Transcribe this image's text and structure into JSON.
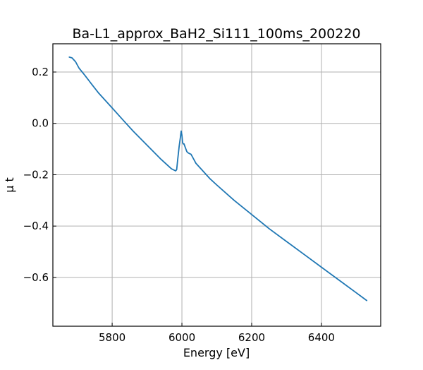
{
  "chart_data": {
    "type": "line",
    "title": "Ba-L1_approx_BaH2_Si111_100ms_200220",
    "xlabel": "Energy [eV]",
    "ylabel": "μ t",
    "xlim": [
      5630,
      6570
    ],
    "ylim": [
      -0.79,
      0.31
    ],
    "xticks": [
      5800,
      6000,
      6200,
      6400
    ],
    "xtick_labels": [
      "5800",
      "6000",
      "6200",
      "6400"
    ],
    "yticks": [
      0.2,
      0.0,
      -0.2,
      -0.4,
      -0.6
    ],
    "ytick_labels": [
      "0.2",
      "0.0",
      "−0.2",
      "−0.4",
      "−0.6"
    ],
    "grid": true,
    "line_color": "#1f77b4",
    "series": [
      {
        "x": [
          5677,
          5685,
          5695,
          5705,
          5720,
          5740,
          5760,
          5780,
          5800,
          5830,
          5860,
          5900,
          5940,
          5970,
          5982,
          5985,
          5988,
          5992,
          5996,
          5998,
          6000,
          6002,
          6004,
          6006,
          6010,
          6014,
          6018,
          6022,
          6026,
          6030,
          6040,
          6060,
          6080,
          6100,
          6150,
          6200,
          6250,
          6300,
          6350,
          6400,
          6450,
          6500,
          6530
        ],
        "y": [
          0.258,
          0.255,
          0.24,
          0.215,
          0.19,
          0.155,
          0.12,
          0.09,
          0.06,
          0.015,
          -0.03,
          -0.085,
          -0.14,
          -0.177,
          -0.185,
          -0.18,
          -0.14,
          -0.09,
          -0.05,
          -0.03,
          -0.045,
          -0.075,
          -0.08,
          -0.08,
          -0.095,
          -0.11,
          -0.115,
          -0.118,
          -0.12,
          -0.13,
          -0.155,
          -0.185,
          -0.215,
          -0.24,
          -0.3,
          -0.355,
          -0.41,
          -0.46,
          -0.51,
          -0.56,
          -0.61,
          -0.66,
          -0.69
        ]
      }
    ]
  }
}
